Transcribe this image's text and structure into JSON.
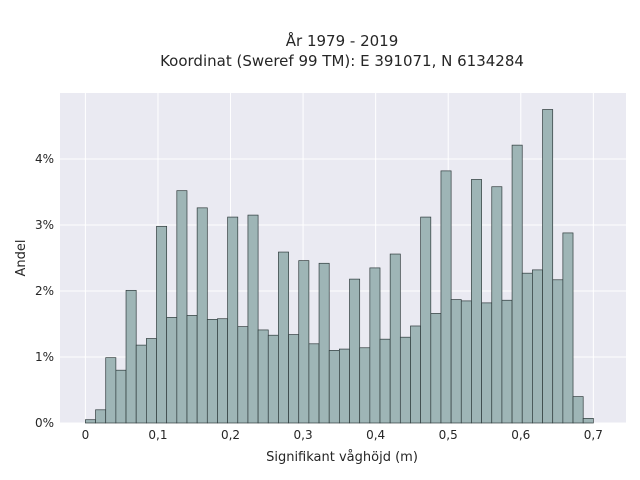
{
  "chart_data": {
    "type": "bar",
    "title_line1": "År 1979 - 2019",
    "title_line2": "Koordinat (Sweref 99 TM): E 391071, N 6134284",
    "xlabel": "Signifikant våghöjd (m)",
    "ylabel": "Andel",
    "bin_width": 0.014,
    "bins_start": 0.0,
    "xlim": [
      -0.035,
      0.745
    ],
    "ylim": [
      0,
      5.0
    ],
    "x_ticks": [
      0,
      0.1,
      0.2,
      0.3,
      0.4,
      0.5,
      0.6,
      0.7
    ],
    "x_tick_labels": [
      "0",
      "0,1",
      "0,2",
      "0,3",
      "0,4",
      "0,5",
      "0,6",
      "0,7"
    ],
    "y_ticks": [
      0,
      1,
      2,
      3,
      4
    ],
    "y_tick_labels": [
      "0%",
      "1%",
      "2%",
      "3%",
      "4%"
    ],
    "values": [
      0.05,
      0.2,
      0.99,
      0.8,
      2.01,
      1.18,
      1.28,
      2.98,
      1.6,
      3.52,
      1.63,
      3.26,
      1.57,
      1.58,
      3.12,
      1.46,
      3.15,
      1.41,
      1.33,
      2.59,
      1.34,
      2.46,
      1.2,
      2.42,
      1.1,
      1.12,
      2.18,
      1.14,
      2.35,
      1.27,
      2.56,
      1.3,
      1.47,
      3.12,
      1.66,
      3.82,
      1.87,
      1.85,
      3.69,
      1.82,
      3.58,
      1.86,
      4.21,
      2.27,
      2.32,
      4.75,
      2.17,
      2.88,
      0.4,
      0.07
    ],
    "colors": {
      "bar_fill": "#9eb5b6",
      "bar_edge": "#2f3b3c",
      "plot_background": "#eaeaf2",
      "grid": "#ffffff"
    },
    "grid": true
  }
}
